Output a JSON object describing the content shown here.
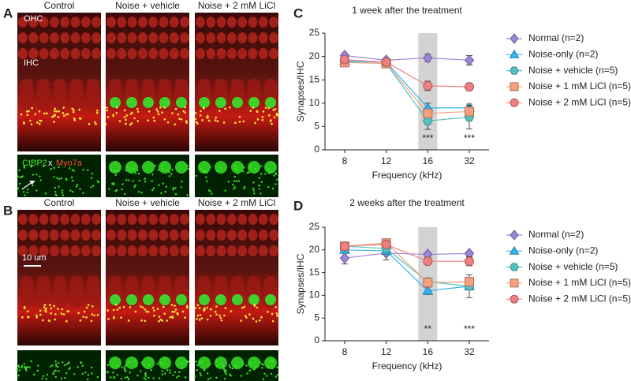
{
  "panel_a": {
    "label": "A",
    "columns": [
      "Control",
      "Noise + vehicle",
      "Noise + 2 mM LiCl"
    ],
    "ohc": "OHC",
    "ihc": "IHC",
    "stain": [
      "CtBP2",
      "x",
      "Myo7a"
    ]
  },
  "panel_b": {
    "label": "B",
    "columns": [
      "Control",
      "Noise + vehicle",
      "Noise + 2 mM LiCl"
    ],
    "scale_bar": "10 um"
  },
  "chart_data": [
    {
      "type": "line",
      "label": "C",
      "title": "1 week after the treatment",
      "x_label": "Frequency (kHz)",
      "y_label": "Synapses/IHC",
      "categories": [
        "8",
        "12",
        "16",
        "32"
      ],
      "highlight": "16",
      "ylim": [
        0,
        25
      ],
      "yticks": [
        0,
        5,
        10,
        15,
        20,
        25
      ],
      "series": [
        {
          "name": "Normal (n=2)",
          "color": "#9b86d6",
          "marker": "diamond",
          "values": [
            20.2,
            19.2,
            19.7,
            19.2
          ],
          "errors": [
            0.5,
            0.5,
            0.8,
            1.0
          ]
        },
        {
          "name": "Noise-only (n=2)",
          "color": "#2fb5f0",
          "marker": "triangle",
          "values": [
            19.0,
            18.8,
            9.0,
            9.0
          ],
          "errors": [
            0.5,
            0.5,
            1.0,
            0.8
          ]
        },
        {
          "name": "Noise + vehicle (n=5)",
          "color": "#53c2c0",
          "marker": "hexagon",
          "values": [
            18.8,
            18.5,
            6.2,
            7.0
          ],
          "errors": [
            0.5,
            0.5,
            1.8,
            2.5
          ]
        },
        {
          "name": "Noise + 1 mM LiCl (n=5)",
          "color": "#f5a07e",
          "marker": "square",
          "values": [
            18.7,
            18.5,
            7.8,
            8.2
          ],
          "errors": [
            0.5,
            0.5,
            0.8,
            0.8
          ]
        },
        {
          "name": "Noise + 2 mM LiCl (n=5)",
          "color": "#f07f7f",
          "marker": "circle",
          "values": [
            19.3,
            18.8,
            13.7,
            13.5
          ],
          "errors": [
            0.5,
            0.5,
            1.0,
            0.8
          ]
        }
      ],
      "annotations": [
        {
          "text": "***",
          "x": "16"
        },
        {
          "text": "***",
          "x": "32"
        }
      ]
    },
    {
      "type": "line",
      "label": "D",
      "title": "2 weeks after the treatment",
      "x_label": "Frequency (kHz)",
      "y_label": "Synapses/IHC",
      "categories": [
        "8",
        "12",
        "16",
        "32"
      ],
      "highlight": "16",
      "ylim": [
        0,
        25
      ],
      "yticks": [
        0,
        5,
        10,
        15,
        20,
        25
      ],
      "series": [
        {
          "name": "Normal (n=2)",
          "color": "#9b86d6",
          "marker": "diamond",
          "values": [
            18.2,
            19.3,
            19.0,
            19.2
          ],
          "errors": [
            1.3,
            1.5,
            0.5,
            0.5
          ]
        },
        {
          "name": "Noise-only (n=2)",
          "color": "#2fb5f0",
          "marker": "triangle",
          "values": [
            20.0,
            19.8,
            11.0,
            12.0
          ],
          "errors": [
            0.6,
            0.6,
            0.8,
            2.5
          ]
        },
        {
          "name": "Noise + vehicle (n=5)",
          "color": "#53c2c0",
          "marker": "hexagon",
          "values": [
            20.8,
            20.3,
            13.0,
            12.0
          ],
          "errors": [
            0.5,
            0.5,
            0.8,
            0.8
          ]
        },
        {
          "name": "Noise + 1 mM LiCl (n=5)",
          "color": "#f5a07e",
          "marker": "square",
          "values": [
            20.8,
            21.5,
            12.8,
            13.0
          ],
          "errors": [
            0.5,
            0.5,
            0.8,
            0.8
          ]
        },
        {
          "name": "Noise + 2 mM LiCl (n=5)",
          "color": "#f07f7f",
          "marker": "circle",
          "values": [
            20.8,
            21.2,
            17.5,
            17.5
          ],
          "errors": [
            0.5,
            0.5,
            0.8,
            1.0
          ]
        }
      ],
      "annotations": [
        {
          "text": "**",
          "x": "16"
        },
        {
          "text": "***",
          "x": "32"
        }
      ]
    }
  ]
}
